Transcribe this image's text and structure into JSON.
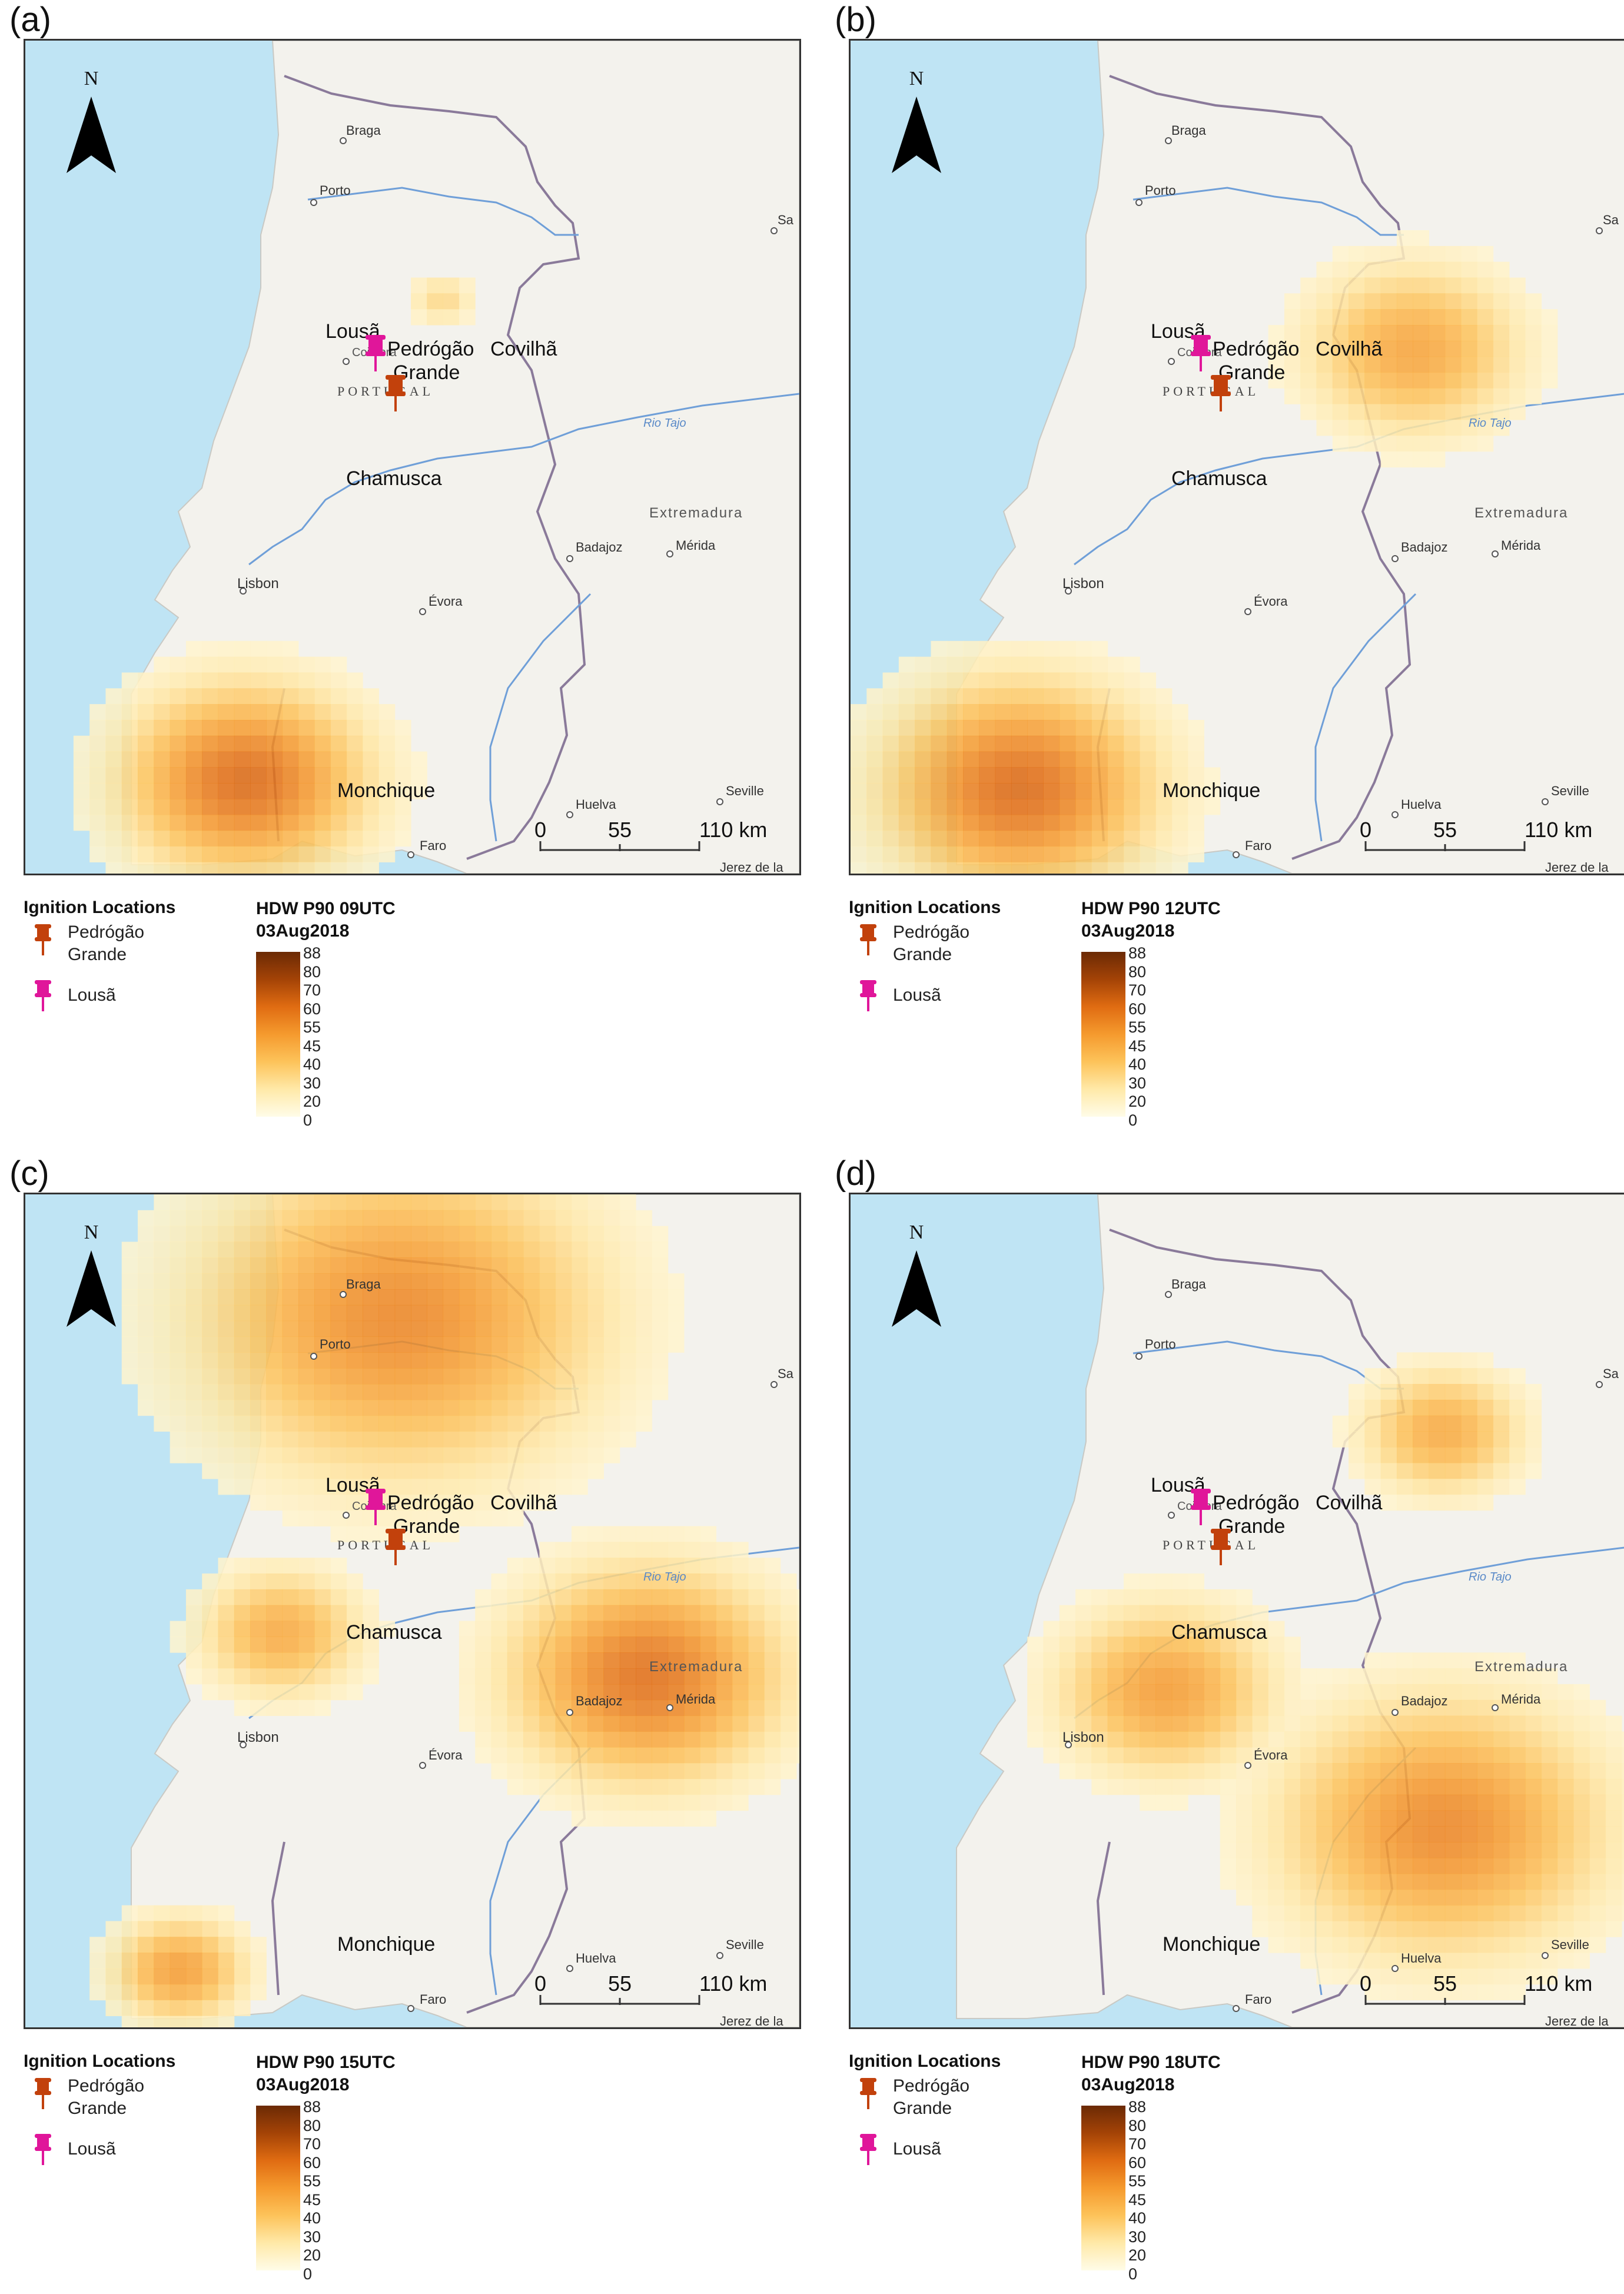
{
  "map": {
    "colors": {
      "sea": "#bfe4f4",
      "land": "#f2f1ec",
      "spain_land": "#f4f3ee",
      "border": "#8a7a9a",
      "river": "#6f9fd8",
      "ramp": [
        "#fffce8",
        "#ffe9a8",
        "#fdc35a",
        "#f59a2e",
        "#e06c12",
        "#a44306",
        "#6b2a05"
      ]
    },
    "north_label": "N",
    "places": {
      "braga": "Braga",
      "porto": "Porto",
      "sa": "Sa",
      "lousa": "Lousã",
      "coimbra": "Coimbra",
      "pedrogao": "Pedrógão",
      "grande": "Grande",
      "covilha": "Covilhã",
      "portugal": "PORTUGAL",
      "rio_tajo": "Rio Tajo",
      "chamusca": "Chamusca",
      "extremadura": "Extremadura",
      "badajoz": "Badajoz",
      "merida": "Mérida",
      "lisbon": "Lisbon",
      "evora": "Évora",
      "monchique": "Monchique",
      "huelva": "Huelva",
      "seville": "Seville",
      "faro": "Faro",
      "jerez": "Jerez de la"
    },
    "scale": {
      "t0": "0",
      "t1": "55",
      "t2": "110 km"
    }
  },
  "legend": {
    "ignition_title": "Ignition Locations",
    "pedrogao_label_1": "Pedrógão",
    "pedrogao_label_2": "Grande",
    "lousa_label": "Lousã",
    "pin_colors": {
      "pedrogao": "#c2410c",
      "lousa": "#e0169a"
    },
    "ramp_ticks": [
      "88",
      "80",
      "70",
      "60",
      "55",
      "45",
      "40",
      "30",
      "20",
      "0"
    ]
  },
  "panels": [
    {
      "letter": "(a)",
      "title_line1": "HDW P90 09UTC",
      "title_line2": "03Aug2018",
      "hotspots": [
        {
          "name": "monchique-south",
          "lon": -8.55,
          "lat": 37.3,
          "r": 0.9,
          "peak": 62
        },
        {
          "name": "guarda-strip",
          "lon": -7.2,
          "lat": 40.65,
          "r": 0.25,
          "peak": 22
        }
      ]
    },
    {
      "letter": "(b)",
      "title_line1": "HDW P90 12UTC",
      "title_line2": "03Aug2018",
      "hotspots": [
        {
          "name": "algarve-west",
          "lon": -8.9,
          "lat": 37.25,
          "r": 1.0,
          "peak": 62
        },
        {
          "name": "salamanca-caceres",
          "lon": -6.2,
          "lat": 40.3,
          "r": 0.8,
          "peak": 42
        }
      ]
    },
    {
      "letter": "(c)",
      "title_line1": "HDW P90 15UTC",
      "title_line2": "03Aug2018",
      "hotspots": [
        {
          "name": "north-portugal",
          "lon": -7.5,
          "lat": 41.6,
          "r": 1.5,
          "peak": 52
        },
        {
          "name": "extremadura-east",
          "lon": -5.8,
          "lat": 39.1,
          "r": 1.0,
          "peak": 60
        },
        {
          "name": "tejo-valley",
          "lon": -8.3,
          "lat": 39.4,
          "r": 0.6,
          "peak": 40
        },
        {
          "name": "algarve-west",
          "lon": -9.0,
          "lat": 37.05,
          "r": 0.5,
          "peak": 45
        }
      ]
    },
    {
      "letter": "(d)",
      "title_line1": "HDW P90 18UTC",
      "title_line2": "03Aug2018",
      "hotspots": [
        {
          "name": "alentejo-north",
          "lon": -7.9,
          "lat": 39.0,
          "r": 0.8,
          "peak": 45
        },
        {
          "name": "andalusia-north",
          "lon": -6.0,
          "lat": 38.05,
          "r": 1.2,
          "peak": 52
        },
        {
          "name": "salamanca",
          "lon": -6.0,
          "lat": 40.8,
          "r": 0.6,
          "peak": 40
        }
      ]
    }
  ]
}
